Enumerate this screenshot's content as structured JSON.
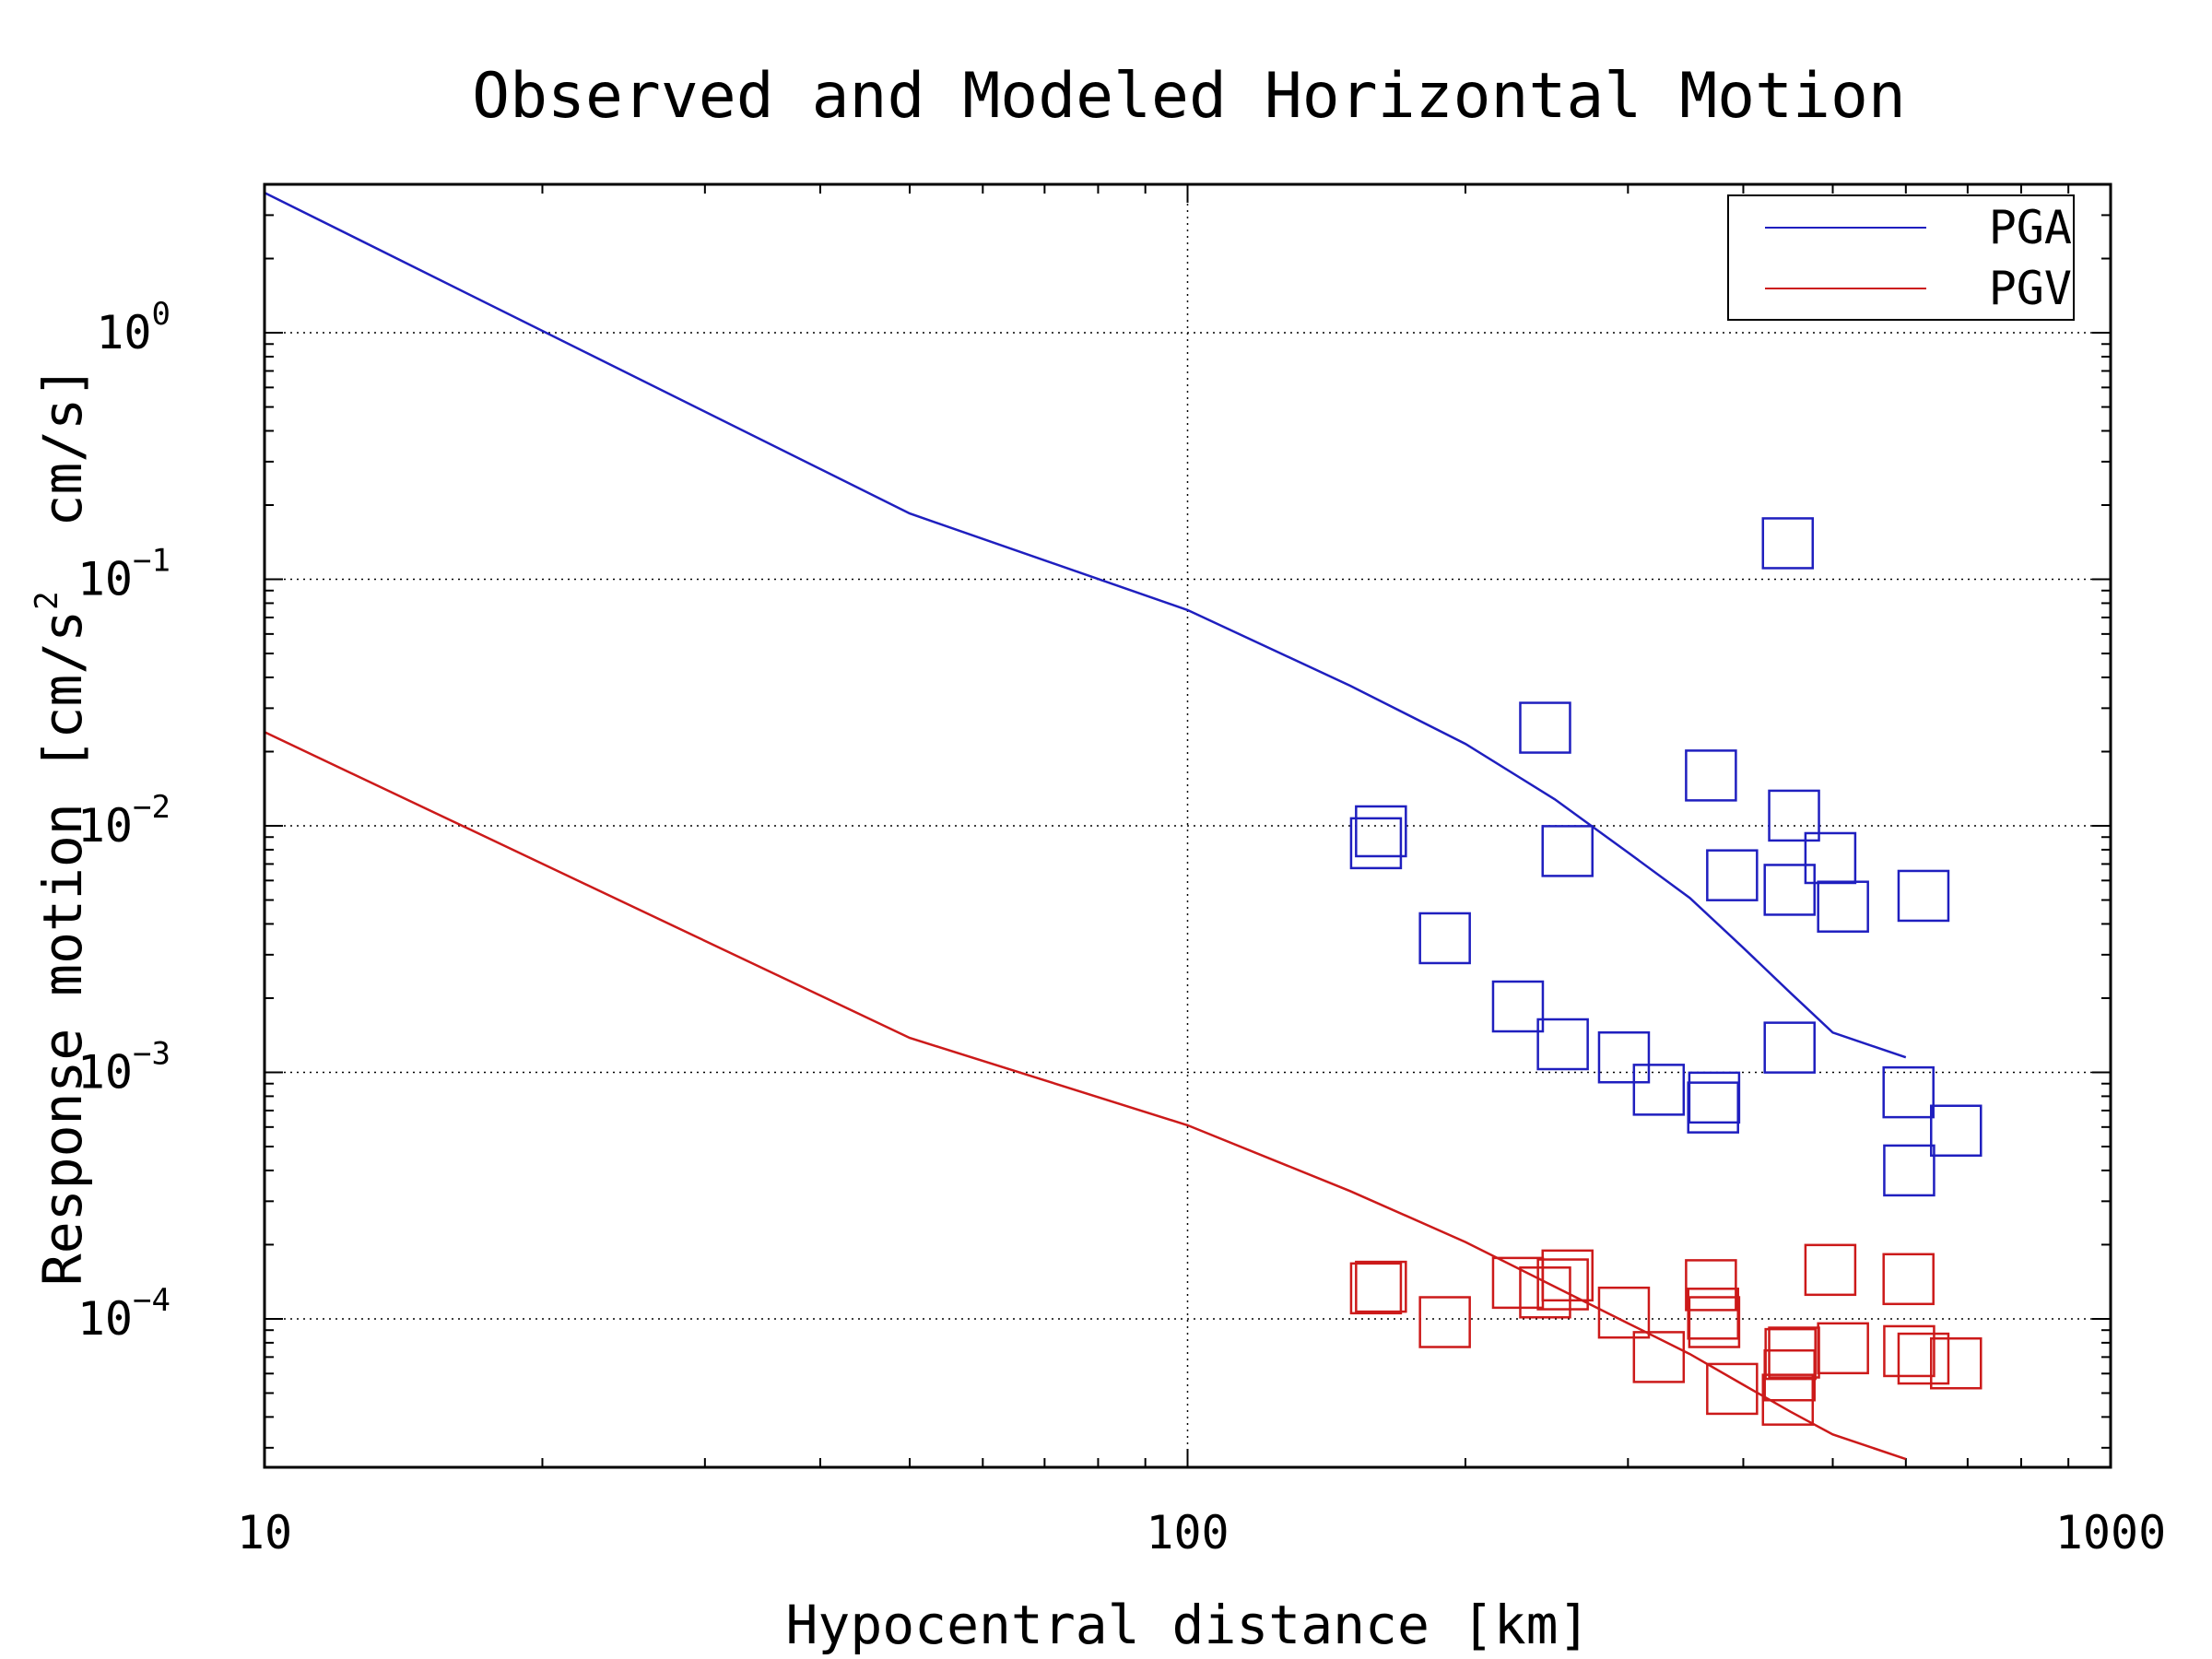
{
  "chart_data": {
    "type": "scatter",
    "title": "Observed and Modeled Horizontal Motion",
    "xlabel": "Hypocentral distance [km]",
    "ylabel": {
      "prefix": "Response motion [cm/s",
      "sup": "2",
      "suffix": "  cm/s]"
    },
    "x_scale": "log",
    "y_scale": "log",
    "xlim": [
      10,
      1000
    ],
    "ylim": [
      2.5e-05,
      4
    ],
    "x_ticks": [
      {
        "value": 10,
        "label": "10"
      },
      {
        "value": 100,
        "label": "100"
      },
      {
        "value": 1000,
        "label": "1000"
      }
    ],
    "y_ticks": [
      {
        "value": 1,
        "base": "10",
        "exp": "0"
      },
      {
        "value": 0.1,
        "base": "10",
        "exp": "−1"
      },
      {
        "value": 0.01,
        "base": "10",
        "exp": "−2"
      },
      {
        "value": 0.001,
        "base": "10",
        "exp": "−3"
      },
      {
        "value": 0.0001,
        "base": "10",
        "exp": "−4"
      }
    ],
    "grid": true,
    "legend_position": "top-right",
    "series": [
      {
        "name": "PGA",
        "color": "#1f1fbf",
        "model_line": [
          [
            10,
            3.7
          ],
          [
            50,
            0.185
          ],
          [
            100,
            0.075
          ],
          [
            150,
            0.037
          ],
          [
            200,
            0.0215
          ],
          [
            250,
            0.0128
          ],
          [
            300,
            0.0078
          ],
          [
            350,
            0.0051
          ],
          [
            400,
            0.0032
          ],
          [
            450,
            0.0021
          ],
          [
            500,
            0.00145
          ],
          [
            600,
            0.00115
          ]
        ],
        "observed": [
          [
            160,
            0.0085
          ],
          [
            162,
            0.0095
          ],
          [
            190,
            0.0035
          ],
          [
            228,
            0.00185
          ],
          [
            244,
            0.025
          ],
          [
            255,
            0.0013
          ],
          [
            258,
            0.0079
          ],
          [
            297,
            0.00115
          ],
          [
            324,
            0.00085
          ],
          [
            369,
            0.016
          ],
          [
            371,
            0.00072
          ],
          [
            372,
            0.00079
          ],
          [
            389,
            0.0063
          ],
          [
            447,
            0.14
          ],
          [
            449,
            0.0055
          ],
          [
            449,
            0.00126
          ],
          [
            454,
            0.011
          ],
          [
            497,
            0.0074
          ],
          [
            513,
            0.0047
          ],
          [
            604,
            0.00083
          ],
          [
            605,
            0.0004
          ],
          [
            627,
            0.0052
          ],
          [
            680,
            0.00058
          ]
        ]
      },
      {
        "name": "PGV",
        "color": "#cc1a1a",
        "model_line": [
          [
            10,
            0.024
          ],
          [
            50,
            0.00138
          ],
          [
            100,
            0.00061
          ],
          [
            150,
            0.00033
          ],
          [
            200,
            0.000205
          ],
          [
            250,
            0.000135
          ],
          [
            300,
            9.6e-05
          ],
          [
            350,
            7.2e-05
          ],
          [
            400,
            5.4e-05
          ],
          [
            450,
            4.2e-05
          ],
          [
            500,
            3.4e-05
          ],
          [
            600,
            2.7e-05
          ]
        ],
        "observed": [
          [
            160,
            0.000133
          ],
          [
            162,
            0.000135
          ],
          [
            190,
            9.7e-05
          ],
          [
            228,
            0.00014
          ],
          [
            244,
            0.000128
          ],
          [
            255,
            0.000138
          ],
          [
            258,
            0.00015
          ],
          [
            297,
            0.000106
          ],
          [
            324,
            7e-05
          ],
          [
            369,
            0.000137
          ],
          [
            371,
            0.000105
          ],
          [
            372,
            9.7e-05
          ],
          [
            389,
            5.2e-05
          ],
          [
            449,
            5.9e-05
          ],
          [
            450,
            7.2e-05
          ],
          [
            447,
            4.7e-05
          ],
          [
            454,
            7.3e-05
          ],
          [
            497,
            0.000158
          ],
          [
            513,
            7.6e-05
          ],
          [
            604,
            0.000145
          ],
          [
            605,
            7.4e-05
          ],
          [
            627,
            6.9e-05
          ],
          [
            680,
            6.6e-05
          ]
        ]
      }
    ]
  }
}
